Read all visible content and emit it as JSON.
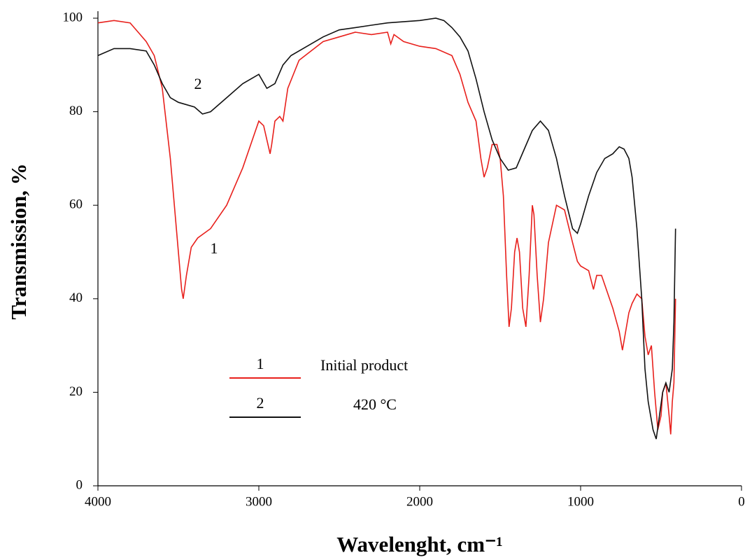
{
  "chart_data": {
    "type": "line",
    "x_label": "Wavelenght, cm⁻¹",
    "y_label": "Transmission, %",
    "xlim": [
      4000,
      0
    ],
    "ylim": [
      0,
      100
    ],
    "xticks": [
      4000,
      3000,
      2000,
      1000,
      0
    ],
    "yticks": [
      0,
      20,
      40,
      60,
      80,
      100
    ],
    "annotations": [
      "2",
      "1"
    ],
    "series": [
      {
        "name": "Initial product",
        "label": "1",
        "color": "#e8201c",
        "x": [
          4000,
          3900,
          3800,
          3750,
          3700,
          3650,
          3600,
          3550,
          3520,
          3500,
          3480,
          3470,
          3450,
          3420,
          3380,
          3300,
          3200,
          3100,
          3020,
          3000,
          2970,
          2950,
          2930,
          2920,
          2900,
          2870,
          2850,
          2820,
          2750,
          2600,
          2500,
          2400,
          2300,
          2200,
          2180,
          2160,
          2100,
          2000,
          1900,
          1800,
          1750,
          1700,
          1650,
          1620,
          1600,
          1580,
          1550,
          1520,
          1500,
          1480,
          1460,
          1445,
          1430,
          1410,
          1395,
          1380,
          1360,
          1340,
          1320,
          1300,
          1290,
          1270,
          1250,
          1230,
          1200,
          1150,
          1100,
          1050,
          1020,
          1000,
          950,
          920,
          900,
          870,
          850,
          800,
          760,
          740,
          720,
          700,
          680,
          650,
          620,
          600,
          580,
          560,
          540,
          520,
          500,
          490,
          470,
          450,
          440,
          430,
          420,
          410
        ],
        "values": [
          99,
          99.5,
          99,
          97,
          95,
          92,
          85,
          70,
          58,
          50,
          42,
          40,
          45,
          51,
          53,
          55,
          60,
          68,
          76,
          78,
          77,
          74,
          71,
          73,
          78,
          79,
          78,
          85,
          91,
          95,
          96,
          97,
          96.5,
          97,
          94.5,
          96.5,
          95,
          94,
          93.5,
          92,
          88,
          82,
          78,
          70,
          66,
          68,
          73,
          73,
          70,
          62,
          45,
          34,
          38,
          50,
          53,
          50,
          38,
          34,
          45,
          60,
          58,
          45,
          35,
          40,
          52,
          60,
          59,
          52,
          48,
          47,
          46,
          42,
          45,
          45,
          43,
          38,
          33,
          29,
          33,
          37,
          39,
          41,
          40,
          32,
          28,
          30,
          20,
          12,
          15,
          20,
          22,
          15,
          11,
          18,
          22,
          40
        ]
      },
      {
        "name": "420 °C",
        "label": "2",
        "color": "#111111",
        "x": [
          4000,
          3900,
          3800,
          3700,
          3650,
          3600,
          3550,
          3500,
          3400,
          3350,
          3300,
          3200,
          3100,
          3000,
          2950,
          2900,
          2850,
          2800,
          2700,
          2600,
          2500,
          2400,
          2300,
          2200,
          2000,
          1900,
          1850,
          1800,
          1750,
          1700,
          1650,
          1600,
          1550,
          1500,
          1450,
          1400,
          1350,
          1300,
          1250,
          1200,
          1150,
          1100,
          1050,
          1020,
          1000,
          950,
          900,
          850,
          800,
          760,
          730,
          700,
          680,
          650,
          620,
          600,
          580,
          550,
          530,
          510,
          490,
          470,
          450,
          430,
          420,
          410
        ],
        "values": [
          92,
          93.5,
          93.5,
          93,
          90,
          86,
          83,
          82,
          81,
          79.5,
          80,
          83,
          86,
          88,
          85,
          86,
          90,
          92,
          94,
          96,
          97.5,
          98,
          98.5,
          99,
          99.5,
          100,
          99.5,
          98,
          96,
          93,
          87,
          80,
          74,
          70,
          67.5,
          68,
          72,
          76,
          78,
          76,
          70,
          62,
          55,
          54,
          56,
          62,
          67,
          70,
          71,
          72.5,
          72,
          70,
          66,
          55,
          40,
          25,
          18,
          12,
          10,
          15,
          20,
          22,
          20,
          25,
          35,
          55
        ]
      }
    ]
  }
}
